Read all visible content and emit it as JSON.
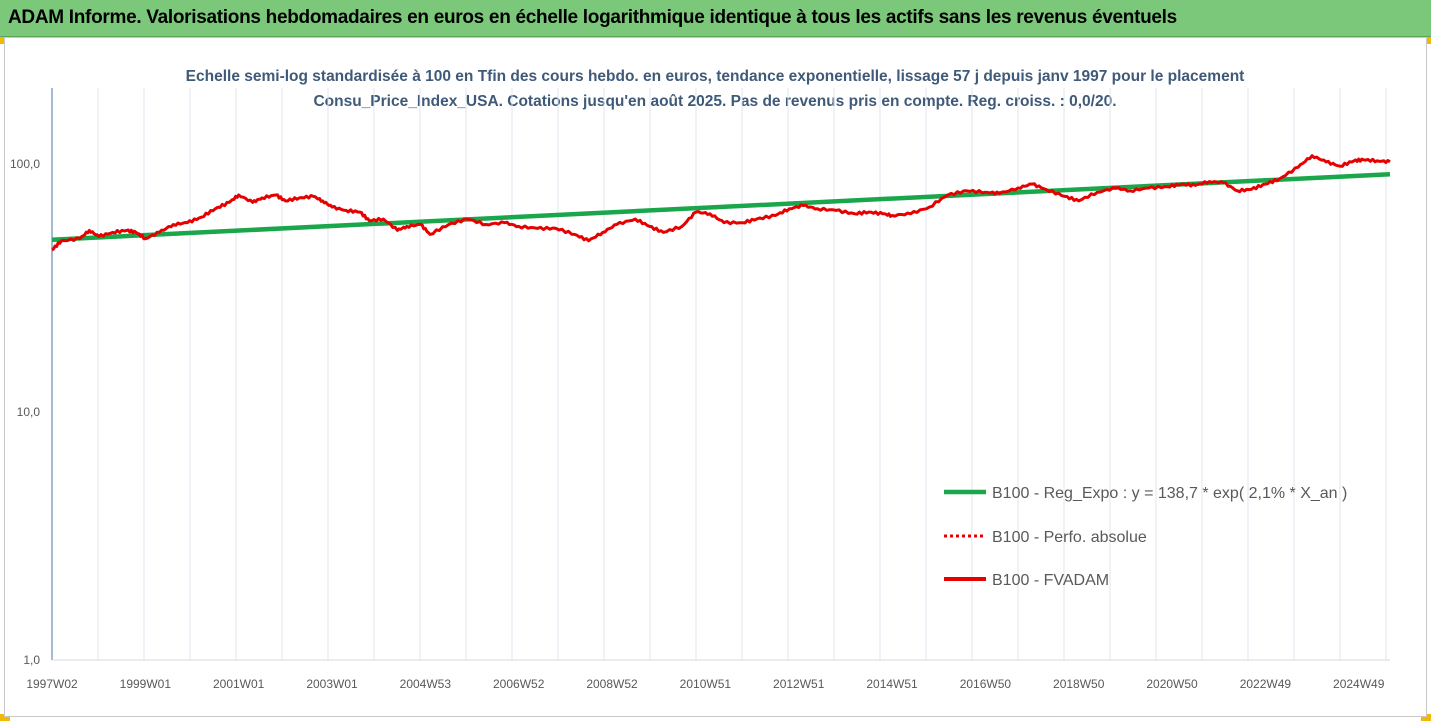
{
  "banner": {
    "title": "ADAM Informe. Valorisations hebdomadaires en euros en échelle logarithmique identique à tous les actifs sans les revenus éventuels"
  },
  "colors": {
    "banner_bg": "#7bc87b",
    "title_text": "#3f5a78",
    "regression": "#1aa64b",
    "fvadam": "#e60000",
    "perfo": "#e60000",
    "corner_accent": "#f2b900"
  },
  "chart_data": {
    "type": "line",
    "title": "Echelle semi-log standardisée à 100 en Tfin des cours hebdo. en euros, tendance exponentielle, lissage 57 j depuis janv 1997 pour le placement Consu_Price_Index_USA. Cotations jusqu'en août 2025. Pas de revenus pris en compte. Reg. croiss. : 0,0/20.",
    "xlabel": "",
    "ylabel": "",
    "y_scale": "log",
    "ylim": [
      1,
      200
    ],
    "xlim": [
      1997.0,
      2025.67
    ],
    "grid": "vertical",
    "legend_position": "bottom-right",
    "y_ticks": [
      {
        "value": 1,
        "label": "1,0"
      },
      {
        "value": 10,
        "label": "10,0"
      },
      {
        "value": 100,
        "label": "100,0"
      }
    ],
    "x_ticks": [
      {
        "value": 1997.0,
        "label": "1997W02"
      },
      {
        "value": 1999.0,
        "label": "1999W01"
      },
      {
        "value": 2001.0,
        "label": "2001W01"
      },
      {
        "value": 2003.0,
        "label": "2003W01"
      },
      {
        "value": 2005.0,
        "label": "2004W53"
      },
      {
        "value": 2007.0,
        "label": "2006W52"
      },
      {
        "value": 2009.0,
        "label": "2008W52"
      },
      {
        "value": 2011.0,
        "label": "2010W51"
      },
      {
        "value": 2013.0,
        "label": "2012W51"
      },
      {
        "value": 2015.0,
        "label": "2014W51"
      },
      {
        "value": 2017.0,
        "label": "2016W50"
      },
      {
        "value": 2019.0,
        "label": "2018W50"
      },
      {
        "value": 2021.0,
        "label": "2020W50"
      },
      {
        "value": 2023.0,
        "label": "2022W49"
      },
      {
        "value": 2025.0,
        "label": "2024W49"
      }
    ],
    "series": [
      {
        "name": "B100 - Reg_Expo : y = 138,7 * exp( 2,1% *  X_an )",
        "style": "solid-thick",
        "color": "#1aa64b",
        "x": [
          1997.0,
          2025.67
        ],
        "y": [
          49.5,
          91
        ]
      },
      {
        "name": "B100 - Perfo. absolue",
        "style": "dotted",
        "color": "#e60000",
        "x": [],
        "y": []
      },
      {
        "name": "B100 - FVADAM",
        "style": "solid",
        "color": "#e60000",
        "x": [
          1997.0,
          1997.2,
          1997.6,
          1997.8,
          1998.0,
          1998.3,
          1998.6,
          1998.8,
          1999.0,
          1999.3,
          1999.6,
          1999.9,
          2000.2,
          2000.5,
          2000.8,
          2001.0,
          2001.3,
          2001.5,
          2001.8,
          2002.0,
          2002.3,
          2002.6,
          2002.8,
          2003.0,
          2003.3,
          2003.6,
          2003.8,
          2004.1,
          2004.4,
          2004.6,
          2004.9,
          2005.1,
          2005.5,
          2005.9,
          2006.3,
          2006.7,
          2007.0,
          2007.4,
          2007.8,
          2008.2,
          2008.5,
          2008.8,
          2009.1,
          2009.5,
          2009.8,
          2010.1,
          2010.5,
          2010.8,
          2011.1,
          2011.4,
          2011.8,
          2012.1,
          2012.5,
          2012.8,
          2013.1,
          2013.4,
          2013.8,
          2014.2,
          2014.5,
          2014.8,
          2015.0,
          2015.4,
          2015.8,
          2016.2,
          2016.6,
          2017.0,
          2017.3,
          2017.7,
          2018.0,
          2018.3,
          2018.7,
          2019.0,
          2019.4,
          2019.8,
          2020.1,
          2020.5,
          2020.9,
          2021.2,
          2021.5,
          2021.8,
          2022.1,
          2022.4,
          2022.7,
          2023.0,
          2023.3,
          2023.7,
          2024.0,
          2024.3,
          2024.6,
          2024.9,
          2025.1,
          2025.4,
          2025.67
        ],
        "y": [
          45,
          49,
          50,
          54,
          51,
          53,
          54,
          53,
          50,
          53,
          57,
          58,
          61,
          66,
          70,
          75,
          70,
          73,
          75,
          71,
          73,
          74,
          71,
          67,
          65,
          64,
          59,
          60,
          54,
          56,
          57,
          52,
          57,
          60,
          57,
          58,
          56,
          55,
          55,
          52,
          49,
          53,
          57,
          60,
          56,
          53,
          56,
          64,
          63,
          58,
          58,
          60,
          62,
          66,
          68,
          66,
          65,
          63,
          64,
          63,
          62,
          63,
          67,
          75,
          78,
          77,
          76,
          80,
          83,
          79,
          74,
          71,
          77,
          80,
          78,
          80,
          81,
          83,
          82,
          85,
          84,
          78,
          79,
          83,
          87,
          97,
          108,
          102,
          98,
          103,
          104,
          103,
          102
        ]
      }
    ]
  }
}
